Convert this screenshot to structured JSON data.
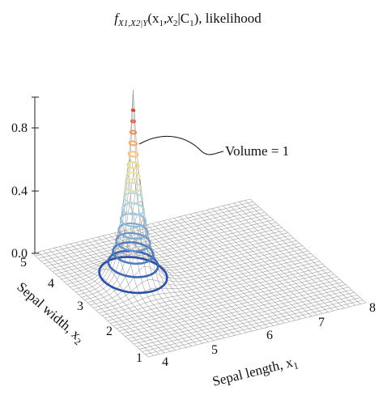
{
  "chart_data": {
    "type": "surface-3d",
    "title": {
      "main": "f",
      "sub": "X1,X2|Y",
      "args": "(x",
      "a1": "1",
      "mid": ",x",
      "a2": "2",
      "cond": "|C",
      "c1": "1",
      "tail": "), likelihood"
    },
    "annotation": "Volume = 1",
    "z_axis": {
      "ticks": [
        "0.0",
        "0.4",
        "0.8"
      ],
      "range": [
        0,
        1.2
      ]
    },
    "x_axis": {
      "label": "Sepal length, x",
      "label_sub": "1",
      "ticks": [
        "4",
        "5",
        "6",
        "7",
        "8"
      ],
      "range": [
        4,
        8
      ]
    },
    "y_axis": {
      "label": "Sepal width, x",
      "label_sub": "2",
      "ticks": [
        "1",
        "2",
        "3",
        "4",
        "5"
      ],
      "range": [
        1,
        5
      ]
    },
    "grid": true,
    "colormap": [
      "#2140a0",
      "#5a8fc8",
      "#a8d2e6",
      "#f4e89a",
      "#f5a35a",
      "#c8242a"
    ],
    "peak_center": {
      "x1": 5.0,
      "x2": 3.4
    }
  }
}
